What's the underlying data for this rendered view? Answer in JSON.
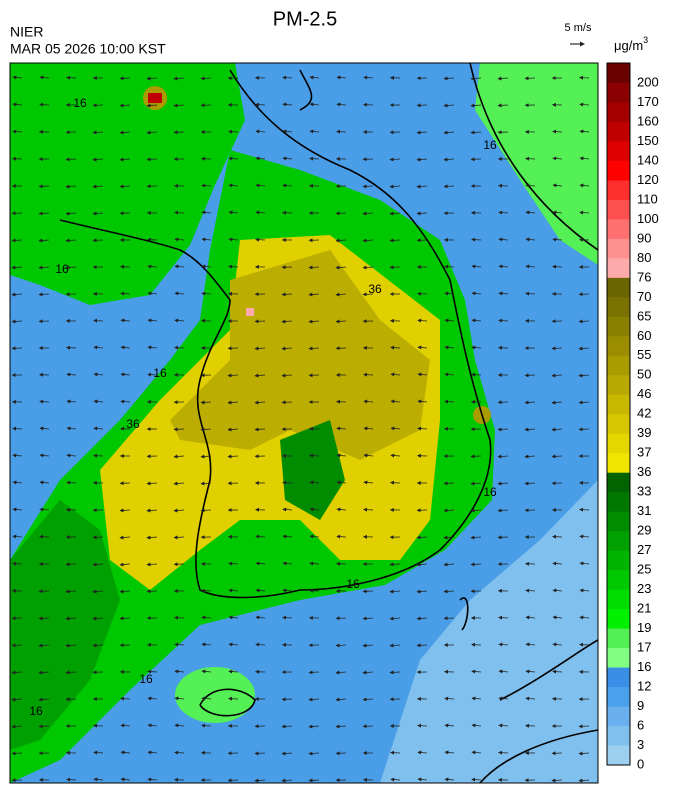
{
  "header": {
    "title": "PM-2.5",
    "agency": "NIER",
    "datetime": "MAR 05 2026 10:00 KST",
    "wind_scale": "5 m/s",
    "unit": "μg/m",
    "unit_power": "3"
  },
  "colorbar": {
    "levels": [
      200,
      170,
      160,
      150,
      140,
      120,
      110,
      100,
      90,
      80,
      76,
      70,
      65,
      60,
      55,
      50,
      46,
      42,
      39,
      37,
      36,
      33,
      31,
      29,
      27,
      25,
      23,
      21,
      19,
      17,
      16,
      12,
      9,
      6,
      3,
      0
    ],
    "colors": [
      "#6b0000",
      "#8b0000",
      "#a50000",
      "#c00000",
      "#dc0000",
      "#ff0000",
      "#ff2e2e",
      "#ff5050",
      "#ff7070",
      "#ff9090",
      "#ffaaaa",
      "#6b6400",
      "#7a7200",
      "#8a8000",
      "#9a8e00",
      "#a89c00",
      "#b8aa00",
      "#c8b800",
      "#d6c600",
      "#e6d600",
      "#f0e400",
      "#006400",
      "#007800",
      "#008c00",
      "#00a000",
      "#00b400",
      "#00c800",
      "#00dc00",
      "#00f000",
      "#55f055",
      "#80ff80",
      "#3a8ee6",
      "#4aa0ea",
      "#6ab0ee",
      "#80c0ee",
      "#9ccff0"
    ]
  },
  "map": {
    "contour_labels": [
      "16",
      "16",
      "16",
      "16",
      "16",
      "16",
      "16",
      "16",
      "36",
      "36"
    ]
  }
}
